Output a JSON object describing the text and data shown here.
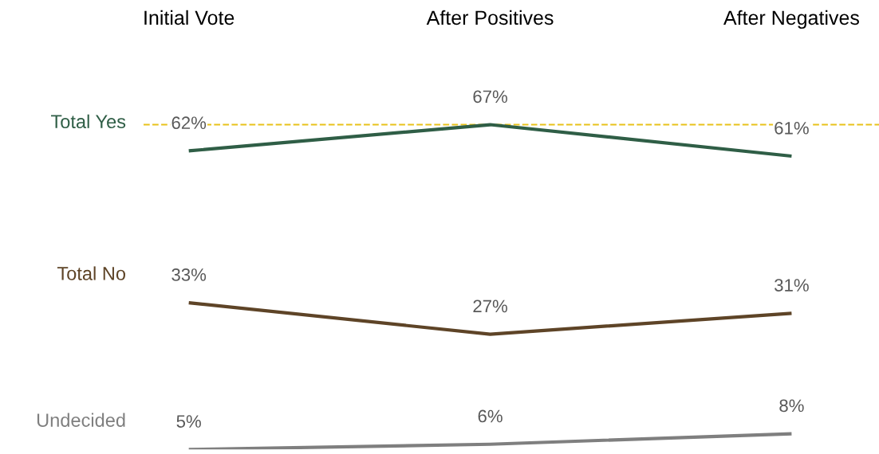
{
  "chart_data": {
    "type": "line",
    "categories": [
      "Initial Vote",
      "After Positives",
      "After Negatives"
    ],
    "series": [
      {
        "name": "Total Yes",
        "color": "#2f5e46",
        "values": [
          62,
          67,
          61
        ],
        "value_labels": [
          "62%",
          "67%",
          "61%"
        ]
      },
      {
        "name": "Total No",
        "color": "#5e4427",
        "values": [
          33,
          27,
          31
        ],
        "value_labels": [
          "33%",
          "27%",
          "31%"
        ]
      },
      {
        "name": "Undecided",
        "color": "#7f7f7f",
        "values": [
          5,
          6,
          8
        ],
        "value_labels": [
          "5%",
          "6%",
          "8%"
        ]
      }
    ],
    "ref_lines": [
      {
        "axis": "y",
        "value": 67,
        "color": "#e8c21a",
        "line_style": "dashed"
      }
    ],
    "tick_labels": "x",
    "grid": false,
    "legend": false,
    "marker": "none",
    "line_style": "solid"
  }
}
